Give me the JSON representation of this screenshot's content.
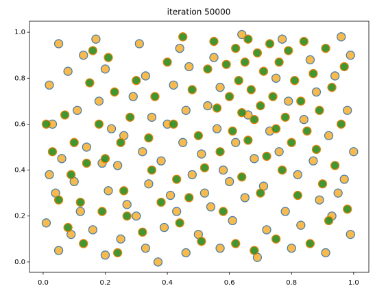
{
  "chart_data": {
    "type": "scatter",
    "title": "iteration 50000",
    "xlim": [
      -0.044,
      1.049
    ],
    "ylim": [
      -0.045,
      1.048
    ],
    "xticks": [
      {
        "value": 0,
        "label": "0.0"
      },
      0.2,
      0.4,
      0.6,
      0.8,
      {
        "value": 1,
        "label": "1.0"
      }
    ],
    "yticks": [
      {
        "value": 0,
        "label": "0.0"
      },
      0.2,
      0.4,
      0.6,
      0.8,
      {
        "value": 1,
        "label": "1.0"
      }
    ],
    "series": [
      {
        "color": "#f6b23c",
        "edgecolor": "#4a7fa8",
        "x": [
          0.02,
          0.05,
          0.08,
          0.03,
          0.06,
          0.02,
          0.04,
          0.01,
          0.05,
          0.09,
          0.12,
          0.1,
          0.14,
          0.11,
          0.13,
          0.17,
          0.2,
          0.18,
          0.22,
          0.19,
          0.21,
          0.16,
          0.2,
          0.25,
          0.27,
          0.24,
          0.26,
          0.29,
          0.31,
          0.33,
          0.35,
          0.32,
          0.34,
          0.3,
          0.33,
          0.37,
          0.39,
          0.41,
          0.38,
          0.4,
          0.42,
          0.44,
          0.47,
          0.46,
          0.45,
          0.48,
          0.43,
          0.46,
          0.5,
          0.52,
          0.51,
          0.53,
          0.55,
          0.57,
          0.56,
          0.58,
          0.54,
          0.57,
          0.61,
          0.6,
          0.62,
          0.64,
          0.66,
          0.68,
          0.65,
          0.69,
          0.72,
          0.71,
          0.73,
          0.75,
          0.77,
          0.79,
          0.76,
          0.78,
          0.8,
          0.83,
          0.82,
          0.84,
          0.86,
          0.88,
          0.87,
          0.89,
          0.91,
          0.93,
          0.92,
          0.94,
          0.96,
          0.98,
          0.97,
          0.99,
          1.0,
          0.95,
          0.99
        ],
        "y": [
          0.77,
          0.95,
          0.83,
          0.6,
          0.45,
          0.38,
          0.3,
          0.17,
          0.05,
          0.12,
          0.22,
          0.35,
          0.5,
          0.66,
          0.9,
          0.97,
          0.84,
          0.7,
          0.58,
          0.43,
          0.31,
          0.14,
          0.03,
          0.1,
          0.25,
          0.42,
          0.55,
          0.72,
          0.95,
          0.81,
          0.63,
          0.48,
          0.34,
          0.2,
          0.06,
          0.0,
          0.15,
          0.29,
          0.44,
          0.6,
          0.77,
          0.93,
          0.85,
          0.66,
          0.52,
          0.38,
          0.22,
          0.04,
          0.12,
          0.3,
          0.47,
          0.68,
          0.89,
          0.76,
          0.58,
          0.4,
          0.24,
          0.06,
          0.18,
          0.35,
          0.52,
          0.99,
          0.64,
          0.45,
          0.28,
          0.02,
          0.14,
          0.33,
          0.57,
          0.8,
          0.97,
          0.7,
          0.48,
          0.22,
          0.06,
          0.16,
          0.38,
          0.62,
          0.88,
          0.74,
          0.44,
          0.27,
          0.04,
          0.2,
          0.55,
          0.81,
          0.98,
          0.66,
          0.36,
          0.12,
          0.48,
          0.3,
          0.9
        ]
      },
      {
        "color": "#2e8b1c",
        "edgecolor": "#e8820c",
        "x": [
          0.01,
          0.03,
          0.05,
          0.07,
          0.09,
          0.08,
          0.12,
          0.14,
          0.15,
          0.16,
          0.18,
          0.19,
          0.21,
          0.23,
          0.24,
          0.26,
          0.28,
          0.3,
          0.32,
          0.34,
          0.36,
          0.38,
          0.4,
          0.42,
          0.43,
          0.45,
          0.47,
          0.48,
          0.5,
          0.52,
          0.53,
          0.55,
          0.56,
          0.57,
          0.58,
          0.59,
          0.6,
          0.61,
          0.62,
          0.62,
          0.63,
          0.64,
          0.64,
          0.65,
          0.66,
          0.66,
          0.67,
          0.68,
          0.68,
          0.69,
          0.7,
          0.7,
          0.71,
          0.72,
          0.73,
          0.74,
          0.75,
          0.75,
          0.76,
          0.77,
          0.78,
          0.79,
          0.8,
          0.81,
          0.82,
          0.83,
          0.84,
          0.85,
          0.86,
          0.87,
          0.88,
          0.89,
          0.9,
          0.91,
          0.92,
          0.93,
          0.94,
          0.96,
          0.97,
          0.98,
          0.1,
          0.2,
          0.27,
          0.35,
          0.44,
          0.51,
          0.25,
          0.13
        ],
        "y": [
          0.6,
          0.48,
          0.27,
          0.64,
          0.38,
          0.15,
          0.26,
          0.43,
          0.78,
          0.92,
          0.6,
          0.22,
          0.89,
          0.74,
          0.04,
          0.31,
          0.63,
          0.79,
          0.13,
          0.54,
          0.72,
          0.26,
          0.87,
          0.6,
          0.36,
          0.98,
          0.28,
          0.75,
          0.55,
          0.41,
          0.84,
          0.96,
          0.67,
          0.48,
          0.22,
          0.86,
          0.72,
          0.57,
          0.08,
          0.93,
          0.79,
          0.65,
          0.37,
          0.87,
          0.53,
          0.97,
          0.75,
          0.62,
          0.05,
          0.91,
          0.68,
          0.3,
          0.83,
          0.46,
          0.95,
          0.72,
          0.58,
          0.1,
          0.87,
          0.4,
          0.63,
          0.92,
          0.52,
          0.79,
          0.29,
          0.7,
          0.96,
          0.57,
          0.08,
          0.82,
          0.49,
          0.66,
          0.34,
          0.93,
          0.18,
          0.76,
          0.42,
          0.6,
          0.85,
          0.23,
          0.52,
          0.45,
          0.2,
          0.4,
          0.17,
          0.09,
          0.52,
          0.08
        ]
      }
    ]
  }
}
